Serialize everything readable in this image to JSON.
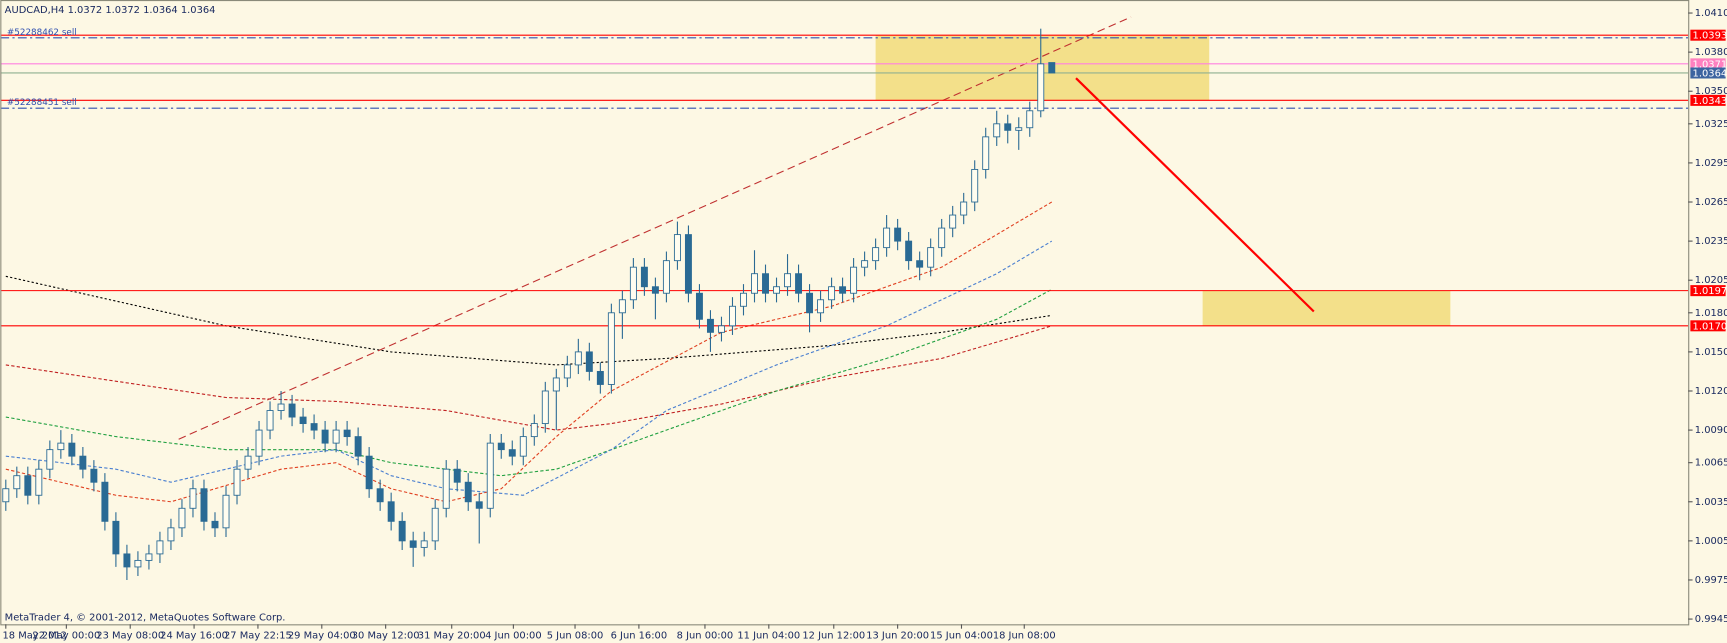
{
  "chart_data": {
    "type": "candlestick",
    "title": "AUDCAD,H4  1.0372 1.0372 1.0364 1.0364",
    "footer": "MetaTrader 4, © 2001-2012, MetaQuotes Software Corp.",
    "background": "#fdf8e4",
    "up_color": "#fffdf0",
    "down_color": "#2a6a94",
    "candle_outline": "#2a6a94",
    "xlim": [
      -0.5,
      152.8
    ],
    "ylim": [
      0.9941,
      1.042
    ],
    "yticks": [
      {
        "value": 1.041,
        "label": "1.0410"
      },
      {
        "value": 1.038,
        "label": "1.0380"
      },
      {
        "value": 1.035,
        "label": "1.0350"
      },
      {
        "value": 1.0325,
        "label": "1.0325"
      },
      {
        "value": 1.0295,
        "label": "1.0295"
      },
      {
        "value": 1.0265,
        "label": "1.0265"
      },
      {
        "value": 1.0235,
        "label": "1.0235"
      },
      {
        "value": 1.0205,
        "label": "1.0205"
      },
      {
        "value": 1.018,
        "label": "1.0180"
      },
      {
        "value": 1.015,
        "label": "1.0150"
      },
      {
        "value": 1.012,
        "label": "1.0120"
      },
      {
        "value": 1.009,
        "label": "1.0090"
      },
      {
        "value": 1.0065,
        "label": "1.0065"
      },
      {
        "value": 1.0035,
        "label": "1.0035"
      },
      {
        "value": 1.0005,
        "label": "1.0005"
      },
      {
        "value": 0.9975,
        "label": "0.9975"
      },
      {
        "value": 0.9945,
        "label": "0.9945"
      }
    ],
    "xticks": [
      {
        "value": 0,
        "label": "18 May 2012"
      },
      {
        "value": 5.5,
        "label": "22 May 00:00"
      },
      {
        "value": 11.3,
        "label": "23 May 08:00"
      },
      {
        "value": 17.1,
        "label": "24 May 16:00"
      },
      {
        "value": 22.9,
        "label": "27 May 22:15"
      },
      {
        "value": 28.7,
        "label": "29 May 04:00"
      },
      {
        "value": 34.5,
        "label": "30 May 12:00"
      },
      {
        "value": 40.5,
        "label": "31 May 20:00"
      },
      {
        "value": 46.1,
        "label": "4 Jun 00:00"
      },
      {
        "value": 51.7,
        "label": "5 Jun 08:00"
      },
      {
        "value": 57.5,
        "label": "6 Jun 16:00"
      },
      {
        "value": 63.5,
        "label": "8 Jun 00:00"
      },
      {
        "value": 69.3,
        "label": "11 Jun 04:00"
      },
      {
        "value": 75.2,
        "label": "12 Jun 12:00"
      },
      {
        "value": 81,
        "label": "13 Jun 20:00"
      },
      {
        "value": 86.8,
        "label": "15 Jun 04:00"
      },
      {
        "value": 92.5,
        "label": "18 Jun 08:00"
      }
    ],
    "candles": [
      [
        1.0035,
        1.0052,
        1.0028,
        1.0045
      ],
      [
        1.0045,
        1.0062,
        1.0038,
        1.0055
      ],
      [
        1.0055,
        1.0062,
        1.0033,
        1.004
      ],
      [
        1.004,
        1.0067,
        1.0033,
        1.006
      ],
      [
        1.006,
        1.0082,
        1.0053,
        1.0075
      ],
      [
        1.0075,
        1.009,
        1.0068,
        1.008
      ],
      [
        1.008,
        1.0087,
        1.0063,
        1.007
      ],
      [
        1.007,
        1.0077,
        1.0053,
        1.006
      ],
      [
        1.006,
        1.0067,
        1.0043,
        1.005
      ],
      [
        1.005,
        1.0057,
        1.0013,
        1.002
      ],
      [
        1.002,
        1.0027,
        0.9985,
        0.9995
      ],
      [
        0.9995,
        1.0002,
        0.9975,
        0.9985
      ],
      [
        0.9985,
        0.9997,
        0.9978,
        0.999
      ],
      [
        0.999,
        1.0002,
        0.9983,
        0.9995
      ],
      [
        0.9995,
        1.0012,
        0.9988,
        1.0005
      ],
      [
        1.0005,
        1.0022,
        0.9998,
        1.0015
      ],
      [
        1.0015,
        1.0037,
        1.0008,
        1.003
      ],
      [
        1.003,
        1.0052,
        1.0023,
        1.0045
      ],
      [
        1.0045,
        1.0052,
        1.0013,
        1.002
      ],
      [
        1.002,
        1.0027,
        1.0008,
        1.0015
      ],
      [
        1.0015,
        1.0047,
        1.0008,
        1.004
      ],
      [
        1.004,
        1.0067,
        1.0033,
        1.006
      ],
      [
        1.006,
        1.0077,
        1.0053,
        1.007
      ],
      [
        1.007,
        1.0097,
        1.0063,
        1.009
      ],
      [
        1.009,
        1.0112,
        1.0083,
        1.0105
      ],
      [
        1.0105,
        1.012,
        1.0098,
        1.011
      ],
      [
        1.011,
        1.0117,
        1.0093,
        1.01
      ],
      [
        1.01,
        1.0107,
        1.0088,
        1.0095
      ],
      [
        1.0095,
        1.0102,
        1.0083,
        1.009
      ],
      [
        1.009,
        1.0097,
        1.0073,
        1.008
      ],
      [
        1.008,
        1.0097,
        1.0073,
        1.009
      ],
      [
        1.009,
        1.0097,
        1.0078,
        1.0085
      ],
      [
        1.0085,
        1.0092,
        1.0063,
        1.007
      ],
      [
        1.007,
        1.0077,
        1.0038,
        1.0045
      ],
      [
        1.0045,
        1.0052,
        1.0028,
        1.0035
      ],
      [
        1.0035,
        1.0042,
        1.0013,
        1.002
      ],
      [
        1.002,
        1.0027,
        0.9998,
        1.0005
      ],
      [
        1.0005,
        1.0012,
        0.9985,
        1.0
      ],
      [
        1.0,
        1.0012,
        0.9993,
        1.0005
      ],
      [
        1.0005,
        1.0037,
        0.9998,
        1.003
      ],
      [
        1.003,
        1.0067,
        1.0023,
        1.006
      ],
      [
        1.006,
        1.0067,
        1.0043,
        1.005
      ],
      [
        1.005,
        1.0057,
        1.0028,
        1.0035
      ],
      [
        1.0035,
        1.0042,
        1.0003,
        1.003
      ],
      [
        1.003,
        1.0087,
        1.0023,
        1.008
      ],
      [
        1.008,
        1.0087,
        1.0068,
        1.0075
      ],
      [
        1.0075,
        1.0082,
        1.0063,
        1.007
      ],
      [
        1.007,
        1.0092,
        1.0063,
        1.0085
      ],
      [
        1.0085,
        1.0102,
        1.0078,
        1.0095
      ],
      [
        1.0095,
        1.0127,
        1.0088,
        1.012
      ],
      [
        1.012,
        1.0137,
        1.009,
        1.013
      ],
      [
        1.013,
        1.0147,
        1.0123,
        1.014
      ],
      [
        1.014,
        1.016,
        1.0133,
        1.015
      ],
      [
        1.015,
        1.0157,
        1.0128,
        1.0135
      ],
      [
        1.0135,
        1.0142,
        1.0118,
        1.0125
      ],
      [
        1.0125,
        1.0187,
        1.0118,
        1.018
      ],
      [
        1.018,
        1.0197,
        1.016,
        1.019
      ],
      [
        1.019,
        1.0222,
        1.0183,
        1.0215
      ],
      [
        1.0215,
        1.0222,
        1.0193,
        1.02
      ],
      [
        1.02,
        1.0207,
        1.0175,
        1.0195
      ],
      [
        1.0195,
        1.0227,
        1.0188,
        1.022
      ],
      [
        1.022,
        1.025,
        1.0213,
        1.024
      ],
      [
        1.024,
        1.0247,
        1.0188,
        1.0195
      ],
      [
        1.0195,
        1.0202,
        1.0168,
        1.0175
      ],
      [
        1.0175,
        1.0182,
        1.015,
        1.0165
      ],
      [
        1.0165,
        1.0177,
        1.0158,
        1.017
      ],
      [
        1.017,
        1.0192,
        1.0163,
        1.0185
      ],
      [
        1.0185,
        1.0202,
        1.0178,
        1.0195
      ],
      [
        1.0195,
        1.0228,
        1.0188,
        1.021
      ],
      [
        1.021,
        1.0217,
        1.0188,
        1.0195
      ],
      [
        1.0195,
        1.0207,
        1.0188,
        1.02
      ],
      [
        1.02,
        1.0225,
        1.0193,
        1.021
      ],
      [
        1.021,
        1.0217,
        1.0188,
        1.0195
      ],
      [
        1.0195,
        1.0202,
        1.0165,
        1.018
      ],
      [
        1.018,
        1.0197,
        1.0173,
        1.019
      ],
      [
        1.019,
        1.0207,
        1.0183,
        1.02
      ],
      [
        1.02,
        1.0207,
        1.0188,
        1.0195
      ],
      [
        1.0195,
        1.0222,
        1.0188,
        1.0215
      ],
      [
        1.0215,
        1.0227,
        1.0208,
        1.022
      ],
      [
        1.022,
        1.0237,
        1.0213,
        1.023
      ],
      [
        1.023,
        1.0255,
        1.0223,
        1.0245
      ],
      [
        1.0245,
        1.0252,
        1.0228,
        1.0235
      ],
      [
        1.0235,
        1.0242,
        1.0213,
        1.022
      ],
      [
        1.022,
        1.0227,
        1.0205,
        1.0215
      ],
      [
        1.0215,
        1.0237,
        1.0208,
        1.023
      ],
      [
        1.023,
        1.0252,
        1.0223,
        1.0245
      ],
      [
        1.0245,
        1.0262,
        1.0238,
        1.0255
      ],
      [
        1.0255,
        1.0272,
        1.0248,
        1.0265
      ],
      [
        1.0265,
        1.0297,
        1.0258,
        1.029
      ],
      [
        1.029,
        1.0322,
        1.0283,
        1.0315
      ],
      [
        1.0315,
        1.0335,
        1.0308,
        1.0325
      ],
      [
        1.0325,
        1.0332,
        1.031,
        1.032
      ],
      [
        1.032,
        1.033,
        1.0305,
        1.0322
      ],
      [
        1.0322,
        1.0342,
        1.0315,
        1.0335
      ],
      [
        1.0335,
        1.0398,
        1.033,
        1.0371
      ],
      [
        1.0372,
        1.0372,
        1.0364,
        1.0364
      ]
    ],
    "series": [
      {
        "color": "#000000",
        "dash": "2,2",
        "x": [
          0,
          20,
          35,
          50,
          60,
          75,
          85,
          95
        ],
        "values": [
          1.0208,
          1.017,
          1.015,
          1.014,
          1.0145,
          1.0155,
          1.0165,
          1.0178
        ]
      },
      {
        "color": "#c02020",
        "dash": "3,2",
        "x": [
          0,
          20,
          30,
          40,
          50,
          55,
          65,
          75,
          85,
          95
        ],
        "values": [
          1.014,
          1.0115,
          1.0112,
          1.0105,
          1.009,
          1.0095,
          1.011,
          1.013,
          1.0145,
          1.017
        ]
      },
      {
        "color": "#20a040",
        "dash": "3,2",
        "x": [
          0,
          10,
          20,
          30,
          35,
          40,
          45,
          50,
          60,
          70,
          80,
          90,
          95
        ],
        "values": [
          1.01,
          1.0085,
          1.0075,
          1.0075,
          1.0065,
          1.006,
          1.0055,
          1.006,
          1.009,
          1.012,
          1.0145,
          1.0175,
          1.0198
        ]
      },
      {
        "color": "#4a7fd0",
        "dash": "3,2",
        "x": [
          0,
          10,
          15,
          25,
          30,
          35,
          40,
          47,
          55,
          60,
          70,
          80,
          90,
          95
        ],
        "values": [
          1.007,
          1.006,
          1.005,
          1.007,
          1.0075,
          1.0055,
          1.0045,
          1.004,
          1.0075,
          1.0105,
          1.014,
          1.017,
          1.021,
          1.0235
        ]
      },
      {
        "color": "#e04020",
        "dash": "3,2",
        "x": [
          0,
          10,
          15,
          25,
          30,
          35,
          40,
          45,
          50,
          55,
          65,
          75,
          85,
          95
        ],
        "values": [
          1.006,
          1.004,
          1.0035,
          1.006,
          1.0065,
          1.0045,
          1.0035,
          1.0045,
          1.0085,
          1.012,
          1.0165,
          1.0185,
          1.0215,
          1.0265
        ]
      }
    ],
    "levels": [
      {
        "value": 1.0393,
        "label": "1.0393",
        "color": "#ff0000",
        "tag": "#ff0000"
      },
      {
        "value": 1.0371,
        "label": "1.0371",
        "color": "#ff80e0",
        "tag": "#ff80c0"
      },
      {
        "value": 1.0364,
        "label": "1.0364",
        "color": "#90b090",
        "tag": "#3c64a0"
      },
      {
        "value": 1.0343,
        "label": "1.0343",
        "color": "#ff0000",
        "tag": "#ff0000"
      },
      {
        "value": 1.0197,
        "label": "1.0197",
        "color": "#ff0000",
        "tag": "#ff0000"
      },
      {
        "value": 1.017,
        "label": "1.0170",
        "color": "#ff0000",
        "tag": "#ff0000"
      }
    ],
    "orders": [
      {
        "label": "#52288462 sell",
        "value": 1.0391,
        "color": "#3050b0"
      },
      {
        "label": "#52288451 sell",
        "value": 1.0337,
        "color": "#3050b0"
      }
    ],
    "zones": [
      {
        "x": [
          79,
          109.3
        ],
        "y": [
          1.0343,
          1.0393
        ],
        "color": "#f3e08a"
      },
      {
        "x": [
          108.7,
          131.2
        ],
        "y": [
          1.017,
          1.0197
        ],
        "color": "#f3e08a"
      }
    ],
    "trendline": {
      "x": [
        15.7,
        102.2
      ],
      "y": [
        1.0083,
        1.0407
      ],
      "color": "#c03030"
    },
    "arrow": {
      "x": [
        97.2,
        118.8
      ],
      "y": [
        1.036,
        1.0181
      ],
      "color": "#ff0000"
    }
  }
}
